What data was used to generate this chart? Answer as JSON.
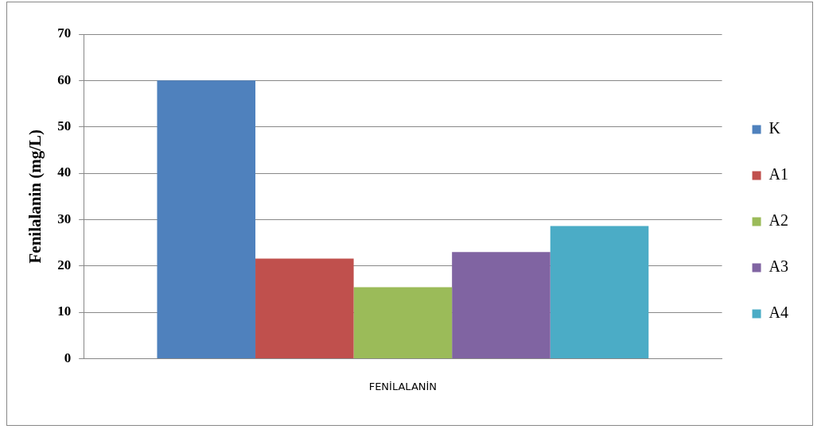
{
  "chart_data": {
    "type": "bar",
    "ylabel": "Fenilalanin (mg/L)",
    "categories": [
      "FENİLALANİN"
    ],
    "series": [
      {
        "name": "K",
        "color": "#4f81bd",
        "values": [
          60
        ]
      },
      {
        "name": "A1",
        "color": "#c0504d",
        "values": [
          21.6
        ]
      },
      {
        "name": "A2",
        "color": "#9bbb59",
        "values": [
          15.4
        ]
      },
      {
        "name": "A3",
        "color": "#8064a2",
        "values": [
          23
        ]
      },
      {
        "name": "A4",
        "color": "#4bacc6",
        "values": [
          28.6
        ]
      }
    ],
    "ylim": [
      0,
      70
    ],
    "yticks": [
      0,
      10,
      20,
      30,
      40,
      50,
      60,
      70
    ],
    "grid": "y",
    "legend": "right"
  }
}
